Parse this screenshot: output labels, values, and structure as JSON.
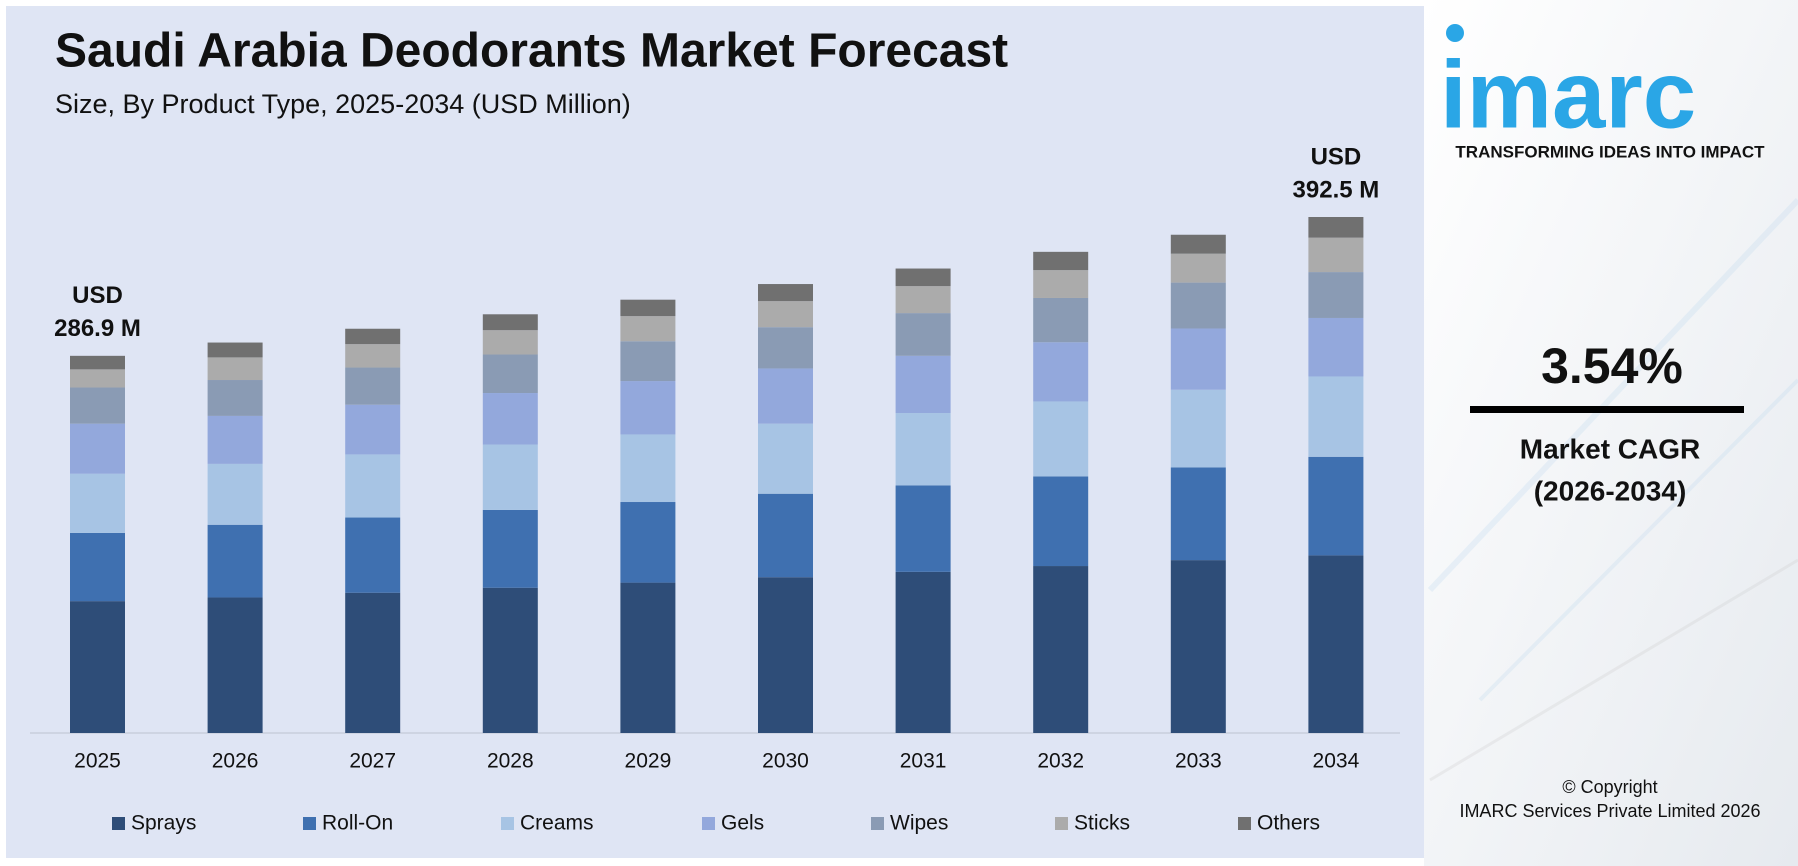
{
  "chart_data": {
    "type": "stacked_bar",
    "title": "Saudi Arabia Deodorants Market Forecast",
    "subtitle": "Size, By Product Type, 2025-2034 (USD Million)",
    "categories": [
      "2025",
      "2026",
      "2027",
      "2028",
      "2029",
      "2030",
      "2031",
      "2032",
      "2033",
      "2034"
    ],
    "series": [
      {
        "name": "Sprays",
        "color": "#2e4d78",
        "values": [
          100.3,
          103.1,
          106.7,
          110.5,
          114.4,
          118.5,
          122.6,
          127.0,
          131.5,
          135.1
        ]
      },
      {
        "name": "Roll-On",
        "color": "#3f70b0",
        "values": [
          51.9,
          55.3,
          57.2,
          59.2,
          61.3,
          63.5,
          65.7,
          68.1,
          70.5,
          75.0
        ]
      },
      {
        "name": "Creams",
        "color": "#a7c4e4",
        "values": [
          45.0,
          46.3,
          48.0,
          49.7,
          51.4,
          53.3,
          55.1,
          57.1,
          59.1,
          61.1
        ]
      },
      {
        "name": "Gels",
        "color": "#93a8dc",
        "values": [
          38.1,
          36.5,
          37.8,
          39.2,
          40.6,
          42.0,
          43.5,
          45.0,
          46.6,
          44.5
        ]
      },
      {
        "name": "Wipes",
        "color": "#8a9bb4",
        "values": [
          27.5,
          27.3,
          28.3,
          29.3,
          30.3,
          31.4,
          32.5,
          33.7,
          34.9,
          34.9
        ]
      },
      {
        "name": "Sticks",
        "color": "#ababab",
        "values": [
          13.8,
          17.2,
          17.8,
          18.5,
          19.1,
          19.8,
          20.5,
          21.2,
          22.0,
          26.2
        ]
      },
      {
        "name": "Others",
        "color": "#707070",
        "values": [
          10.3,
          11.3,
          11.7,
          12.1,
          12.5,
          13.0,
          13.4,
          13.9,
          14.4,
          15.7
        ]
      }
    ],
    "annotations": [
      {
        "category": "2025",
        "lines": [
          "USD",
          "286.9 M"
        ]
      },
      {
        "category": "2034",
        "lines": [
          "USD",
          "392.5 M"
        ]
      }
    ],
    "legend": "bottom"
  },
  "sidebar": {
    "logo": "imarc",
    "tagline": "TRANSFORMING IDEAS INTO IMPACT",
    "cagr": "3.54%",
    "cagr_label": [
      "Market CAGR",
      "(2026-2034)"
    ],
    "copyright": [
      "© Copyright",
      "IMARC Services Private Limited 2026"
    ]
  }
}
